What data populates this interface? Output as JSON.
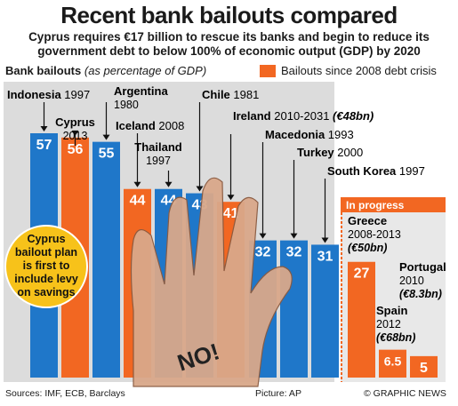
{
  "title": "Recent bank bailouts compared",
  "subtitle": "Cyprus requires €17 billion to rescue its banks and begin to reduce its government debt to below 100% of economic output (GDP) by 2020",
  "legend": {
    "series_label": "Bank bailouts",
    "series_note": "(as percentage of GDP)",
    "highlight_label": "Bailouts since 2008 debt crisis"
  },
  "in_progress_label": "In progress",
  "callout": "Cyprus bailout plan is first to include levy on savings",
  "hand_text": "NO!",
  "footer": {
    "sources": "Sources: IMF, ECB, Barclays",
    "picture": "Picture: AP",
    "credit": "© GRAPHIC NEWS"
  },
  "colors": {
    "blue": "#1f77c9",
    "orange": "#f26722",
    "stem": "#111111",
    "background_band": "#dcdcdc"
  },
  "chart_data": {
    "type": "bar",
    "ylabel": "Bank bailouts (as percentage of GDP)",
    "series": [
      {
        "name": "Bank bailouts",
        "color": "blue"
      },
      {
        "name": "Bailouts since 2008 debt crisis",
        "color": "orange"
      }
    ],
    "bars": [
      {
        "country": "Indonesia",
        "year": "1997",
        "value": 57,
        "label": "57",
        "post2008": false
      },
      {
        "country": "Cyprus",
        "year": "2013",
        "value": 56,
        "label": "56",
        "post2008": true
      },
      {
        "country": "Argentina",
        "year": "1980",
        "value": 55,
        "label": "55",
        "post2008": false
      },
      {
        "country": "Iceland",
        "year": "2008",
        "value": 44,
        "label": "44",
        "post2008": true
      },
      {
        "country": "Thailand",
        "year": "1997",
        "value": 44,
        "label": "44",
        "post2008": false
      },
      {
        "country": "Chile",
        "year": "1981",
        "value": 43,
        "label": "43",
        "post2008": false
      },
      {
        "country": "Ireland",
        "year": "2010-2031",
        "amount": "(€48bn)",
        "value": 41,
        "label": "41",
        "post2008": true
      },
      {
        "country": "Macedonia",
        "year": "1993",
        "value": 32,
        "label": "32",
        "post2008": false
      },
      {
        "country": "Turkey",
        "year": "2000",
        "value": 32,
        "label": "32",
        "post2008": false
      },
      {
        "country": "South Korea",
        "year": "1997",
        "value": 31,
        "label": "31",
        "post2008": false
      },
      {
        "country": "Greece",
        "year": "2008-2013",
        "amount": "(€50bn)",
        "value": 27,
        "label": "27",
        "post2008": true,
        "in_progress": true
      },
      {
        "country": "Portugal",
        "year": "2010",
        "amount": "(€8.3bn)",
        "value": 6.5,
        "label": "6.5",
        "post2008": true,
        "in_progress": true
      },
      {
        "country": "Spain",
        "year": "2012",
        "amount": "(€68bn)",
        "value": 5,
        "label": "5",
        "post2008": true,
        "in_progress": true
      }
    ]
  }
}
